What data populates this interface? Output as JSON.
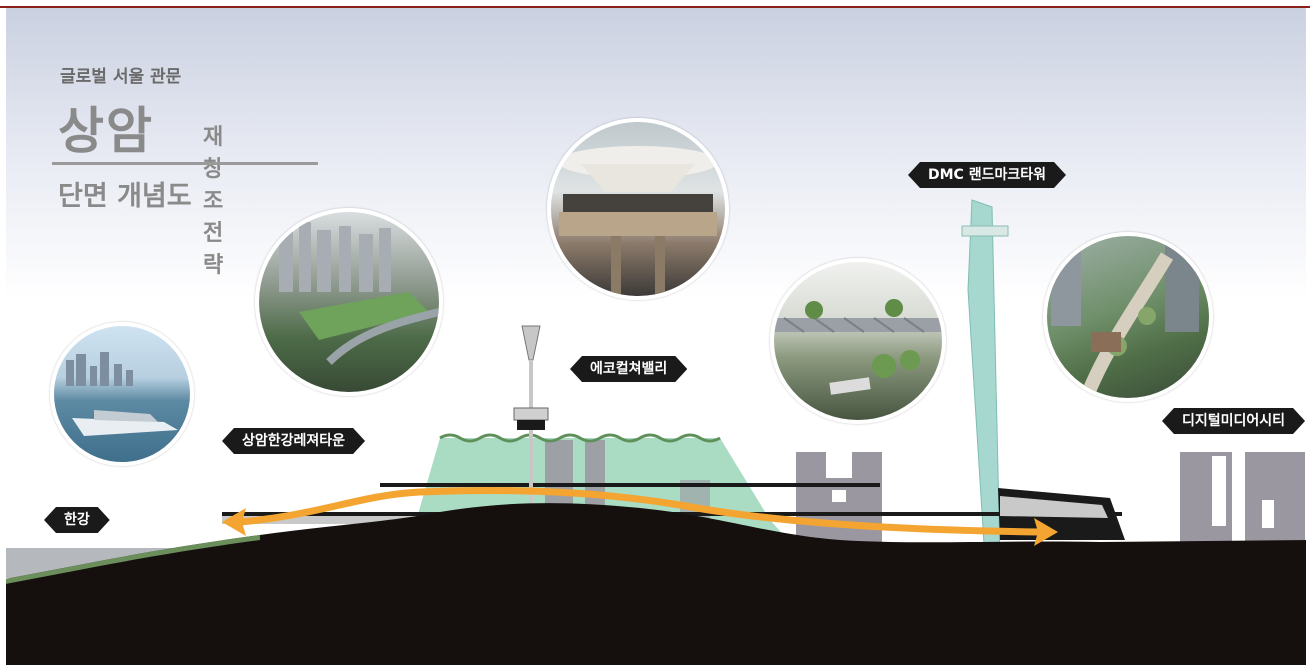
{
  "title": {
    "subtitle": "글로벌 서울 관문",
    "main_big": "상암",
    "main_small": "재창조 전략",
    "caption": "단면 개념도"
  },
  "labels": {
    "han_river": "한강",
    "leisure_town": "상암한강레져타운",
    "eco_valley": "에코컬쳐밸리",
    "landmark_tower": "DMC 랜드마크타워",
    "dmc": "디지털미디어시티"
  },
  "colors": {
    "accent_red": "#8a1f1a",
    "ground": "#15100e",
    "green_roof": "#a9dcc2",
    "tower": "#a6d8cf",
    "buildings": "#9b97a0",
    "arrow": "#f4a531"
  },
  "photos": [
    {
      "name": "ferry-photo",
      "subject": "ferry"
    },
    {
      "name": "leisure-town-photo",
      "subject": "green-roof-complex"
    },
    {
      "name": "tower-deck-photo",
      "subject": "observation-deck"
    },
    {
      "name": "eco-valley-photo",
      "subject": "rail-bridge-park"
    },
    {
      "name": "dmc-photo",
      "subject": "aerial-green-street"
    }
  ]
}
